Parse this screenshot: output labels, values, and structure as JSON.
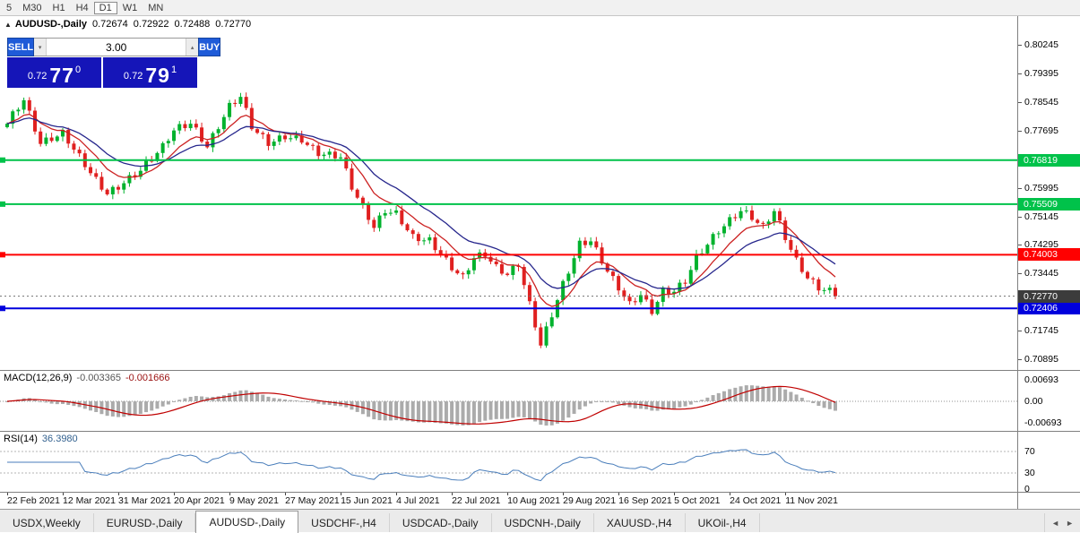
{
  "toolbar": {
    "timeframes": [
      "5",
      "M30",
      "H1",
      "H4",
      "D1",
      "W1",
      "MN"
    ],
    "selected": "D1"
  },
  "icons": {
    "collapse": "▲",
    "spin_down": "▾",
    "spin_up": "▴",
    "tabs_left": "◄",
    "tabs_right": "►"
  },
  "chart": {
    "title_symbol": "AUDUSD-,Daily",
    "ohlc": {
      "open": "0.72674",
      "high": "0.72922",
      "low": "0.72488",
      "close": "0.72770"
    }
  },
  "trade_panel": {
    "sell_label": "SELL",
    "buy_label": "BUY",
    "volume": "3.00",
    "sell_price": {
      "base": "0.72",
      "big": "77",
      "sup": "0"
    },
    "buy_price": {
      "base": "0.72",
      "big": "79",
      "sup": "1"
    }
  },
  "colors": {
    "trade_button": "#1f5bd8",
    "price_panel": "#1515b8",
    "axis_separator": "#808080"
  },
  "price_axis": {
    "labels": [
      "0.80245",
      "0.79395",
      "0.78545",
      "0.77695",
      "0.76845",
      "0.75995",
      "0.75145",
      "0.74295",
      "0.73445",
      "0.72595",
      "0.71745",
      "0.70895"
    ]
  },
  "hlines": [
    {
      "price": 0.76819,
      "label": "0.76819",
      "color": "#00c24a",
      "width": 2
    },
    {
      "price": 0.75509,
      "label": "0.75509",
      "color": "#00c24a",
      "width": 2
    },
    {
      "price": 0.74003,
      "label": "0.74003",
      "color": "#ff0000",
      "width": 2
    },
    {
      "price": 0.72406,
      "label": "0.72406",
      "color": "#0000dd",
      "width": 2
    }
  ],
  "current_price": {
    "value": 0.7277,
    "label": "0.72770",
    "badge_color": "#3c3c3c"
  },
  "macd": {
    "name": "MACD(12,26,9)",
    "value_main": "-0.003365",
    "value_signal": "-0.001666",
    "axis": [
      "0.00693",
      "0.00",
      "-0.00693"
    ],
    "range": 0.0088,
    "hist_color": "#ababab",
    "signal_color": "#c00000"
  },
  "rsi": {
    "name": "RSI(14)",
    "value": "36.3980",
    "period": 14,
    "axis": [
      "70",
      "30",
      "0"
    ],
    "levels": [
      70,
      30
    ],
    "line_color": "#4a7ebb"
  },
  "time_axis": {
    "step": 10,
    "labels": [
      "22 Feb 2021",
      "12 Mar 2021",
      "31 Mar 2021",
      "20 Apr 2021",
      "9 May 2021",
      "27 May 2021",
      "15 Jun 2021",
      "4 Jul 2021",
      "22 Jul 2021",
      "10 Aug 2021",
      "29 Aug 2021",
      "16 Sep 2021",
      "5 Oct 2021",
      "24 Oct 2021",
      "11 Nov 2021"
    ]
  },
  "tabs": {
    "items": [
      {
        "label": "USDX,Weekly",
        "active": false
      },
      {
        "label": "EURUSD-,Daily",
        "active": false
      },
      {
        "label": "AUDUSD-,Daily",
        "active": true
      },
      {
        "label": "USDCHF-,H4",
        "active": false
      },
      {
        "label": "USDCAD-,Daily",
        "active": false
      },
      {
        "label": "USDCNH-,Daily",
        "active": false
      },
      {
        "label": "XAUUSD-,H4",
        "active": false
      },
      {
        "label": "UKOil-,H4",
        "active": false
      }
    ]
  },
  "chart_data": {
    "type": "candlestick",
    "symbol": "AUDUSD",
    "timeframe": "Daily",
    "title": "AUDUSD-,Daily",
    "price_range": {
      "min": 0.706,
      "max": 0.8105
    },
    "first_open": 0.778,
    "up_color": "#00b22d",
    "down_color": "#e02020",
    "ma_fast": {
      "period": 9,
      "color": "#cc2222"
    },
    "ma_slow": {
      "period": 18,
      "color": "#26268c"
    },
    "closes": [
      0.779,
      0.7827,
      0.7832,
      0.786,
      0.7829,
      0.7767,
      0.773,
      0.7749,
      0.7739,
      0.7752,
      0.7772,
      0.7731,
      0.7713,
      0.7702,
      0.7661,
      0.7643,
      0.7632,
      0.7594,
      0.758,
      0.7602,
      0.7594,
      0.7613,
      0.7637,
      0.7632,
      0.765,
      0.768,
      0.7679,
      0.7703,
      0.7732,
      0.7739,
      0.777,
      0.7789,
      0.7777,
      0.779,
      0.7779,
      0.7737,
      0.772,
      0.7762,
      0.7774,
      0.781,
      0.7852,
      0.7849,
      0.787,
      0.7837,
      0.7774,
      0.7763,
      0.7759,
      0.7724,
      0.7737,
      0.7755,
      0.7744,
      0.7747,
      0.7755,
      0.7734,
      0.7727,
      0.7725,
      0.7694,
      0.7698,
      0.7707,
      0.7687,
      0.769,
      0.7657,
      0.7594,
      0.757,
      0.7552,
      0.7504,
      0.748,
      0.7517,
      0.7524,
      0.7525,
      0.7532,
      0.7491,
      0.7473,
      0.7462,
      0.7441,
      0.7443,
      0.7452,
      0.7414,
      0.74,
      0.7392,
      0.7354,
      0.7345,
      0.7342,
      0.7354,
      0.739,
      0.7407,
      0.7394,
      0.738,
      0.7372,
      0.7344,
      0.734,
      0.7367,
      0.7364,
      0.731,
      0.7262,
      0.7184,
      0.713,
      0.7187,
      0.7214,
      0.7265,
      0.7322,
      0.7344,
      0.739,
      0.7442,
      0.7429,
      0.744,
      0.7422,
      0.7374,
      0.735,
      0.7337,
      0.7294,
      0.7275,
      0.7262,
      0.7259,
      0.728,
      0.7267,
      0.7224,
      0.726,
      0.7302,
      0.7284,
      0.729,
      0.7317,
      0.7314,
      0.7355,
      0.7402,
      0.7404,
      0.743,
      0.7462,
      0.7464,
      0.7485,
      0.7512,
      0.7509,
      0.753,
      0.7532,
      0.7504,
      0.7495,
      0.7492,
      0.7499,
      0.753,
      0.7502,
      0.7444,
      0.7415,
      0.7392,
      0.7349,
      0.733,
      0.7327,
      0.7294,
      0.7295,
      0.7302,
      0.7277
    ]
  }
}
